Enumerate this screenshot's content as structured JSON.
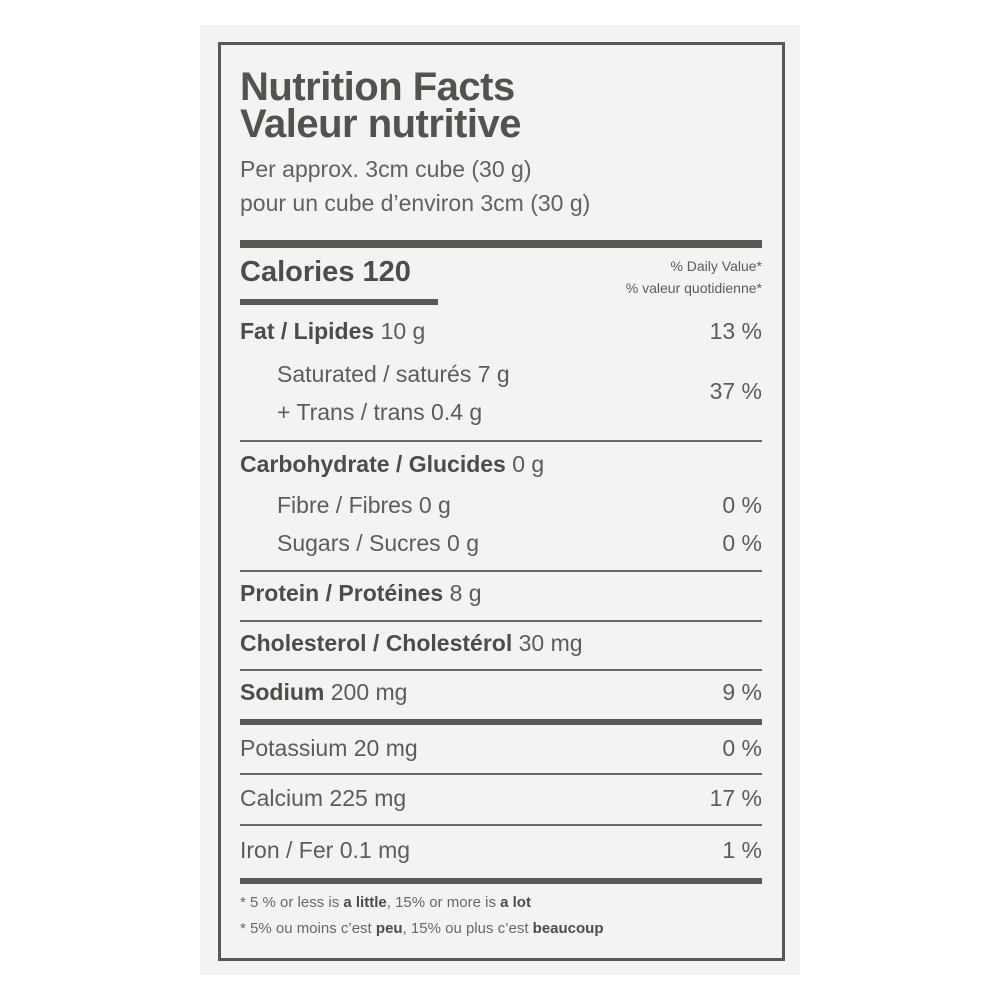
{
  "label": {
    "title_en": "Nutrition Facts",
    "title_fr": "Valeur nutritive",
    "serving_en": "Per approx. 3cm cube (30 g)",
    "serving_fr": "pour un cube d’environ 3cm (30 g)",
    "calories_label": "Calories",
    "calories_value": "120",
    "dv_header_en": "% Daily Value*",
    "dv_header_fr": "% valeur quotidienne*",
    "rows": [
      {
        "name": "Fat / Lipides",
        "amount": "10 g",
        "dv": "13 %"
      },
      {
        "name": "Saturated / saturés",
        "amount": "7 g",
        "dv": "37 %"
      },
      {
        "name": "+ Trans / trans",
        "amount": "0.4 g"
      },
      {
        "name": "Carbohydrate / Glucides",
        "amount": "0 g"
      },
      {
        "name": "Fibre / Fibres",
        "amount": "0 g",
        "dv": "0 %"
      },
      {
        "name": "Sugars / Sucres",
        "amount": "0 g",
        "dv": "0 %"
      },
      {
        "name": "Protein / Protéines",
        "amount": "8 g"
      },
      {
        "name": "Cholesterol / Cholestérol",
        "amount": "30 mg"
      },
      {
        "name": "Sodium",
        "amount": "200 mg",
        "dv": "9 %"
      },
      {
        "name": "Potassium",
        "amount": "20 mg",
        "dv": "0 %"
      },
      {
        "name": "Calcium",
        "amount": "225 mg",
        "dv": "17 %"
      },
      {
        "name": "Iron / Fer",
        "amount": "0.1 mg",
        "dv": "1 %"
      }
    ],
    "footnote_en": {
      "a": "* 5 % or less is ",
      "b": "a little",
      "c": ", 15% or more is ",
      "d": "a lot"
    },
    "footnote_fr": {
      "a": "* 5% ou moins c’est ",
      "b": "peu",
      "c": ", 15% ou plus c’est ",
      "d": "beaucoup"
    }
  }
}
